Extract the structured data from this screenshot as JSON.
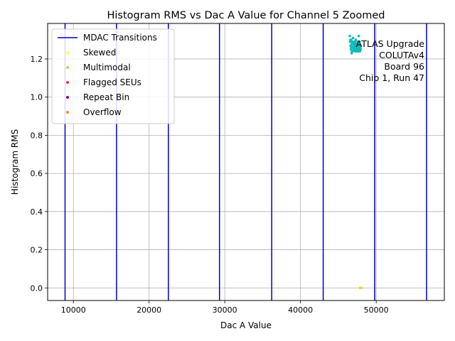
{
  "chart_data": {
    "type": "scatter",
    "title": "Histogram RMS vs Dac A Value for Channel 5 Zoomed",
    "xlabel": "Dac A Value",
    "ylabel": "Histogram RMS",
    "xlim": [
      6600,
      59000
    ],
    "ylim": [
      -0.066,
      1.386
    ],
    "x_ticks": [
      10000,
      20000,
      30000,
      40000,
      50000
    ],
    "y_ticks": [
      0.0,
      0.2,
      0.4,
      0.6,
      0.8,
      1.0,
      1.2
    ],
    "x_tick_labels": [
      "10000",
      "20000",
      "30000",
      "40000",
      "50000"
    ],
    "y_tick_labels": [
      "0.0",
      "0.2",
      "0.4",
      "0.6",
      "0.8",
      "1.0",
      "1.2"
    ],
    "grid": true,
    "legend_position": "upper-left",
    "legend": [
      {
        "label": "MDAC Transitions",
        "kind": "line",
        "color": "#0000cc"
      },
      {
        "label": "Skewed",
        "kind": "marker",
        "color": "#ffff33"
      },
      {
        "label": "Multimodal",
        "kind": "marker",
        "color": "#99ee44"
      },
      {
        "label": "Flagged SEUs",
        "kind": "marker",
        "color": "#dd3333"
      },
      {
        "label": "Repeat Bin",
        "kind": "marker",
        "color": "#880088"
      },
      {
        "label": "Overflow",
        "kind": "marker",
        "color": "#ff8833"
      }
    ],
    "mdac_transitions": [
      8900,
      15700,
      22550,
      29300,
      36200,
      43000,
      49800,
      56650
    ],
    "annotation": [
      "ATLAS Upgrade",
      "COLUTAv4",
      "Board 96",
      "Chip 1, Run 47"
    ],
    "series": [
      {
        "color": "#11bbbb",
        "points": [
          [
            46500,
            1.32
          ],
          [
            46550,
            1.29
          ],
          [
            46600,
            1.27
          ],
          [
            46650,
            1.25
          ],
          [
            46700,
            1.3
          ],
          [
            46750,
            1.23
          ],
          [
            46800,
            1.28
          ],
          [
            46850,
            1.26
          ],
          [
            46900,
            1.24
          ],
          [
            46950,
            1.31
          ],
          [
            47000,
            1.27
          ],
          [
            47050,
            1.25
          ],
          [
            47100,
            1.29
          ],
          [
            47150,
            1.26
          ],
          [
            47200,
            1.24
          ],
          [
            47250,
            1.28
          ],
          [
            47300,
            1.3
          ],
          [
            47350,
            1.25
          ],
          [
            47400,
            1.27
          ],
          [
            47450,
            1.26
          ],
          [
            47500,
            1.24
          ],
          [
            47550,
            1.29
          ],
          [
            47600,
            1.27
          ],
          [
            47650,
            1.25
          ],
          [
            47700,
            1.32
          ],
          [
            47750,
            1.28
          ],
          [
            47800,
            1.26
          ],
          [
            47850,
            1.24
          ],
          [
            47900,
            1.27
          ],
          [
            47950,
            1.25
          ],
          [
            46600,
            1.3
          ],
          [
            46700,
            1.26
          ],
          [
            46800,
            1.24
          ],
          [
            46900,
            1.28
          ],
          [
            47000,
            1.25
          ],
          [
            47100,
            1.27
          ],
          [
            47200,
            1.29
          ],
          [
            47300,
            1.26
          ],
          [
            47400,
            1.24
          ],
          [
            47500,
            1.28
          ],
          [
            47600,
            1.26
          ],
          [
            47700,
            1.24
          ],
          [
            47800,
            1.29
          ],
          [
            47900,
            1.26
          ],
          [
            46650,
            1.27
          ],
          [
            46850,
            1.29
          ],
          [
            47050,
            1.28
          ],
          [
            47250,
            1.25
          ],
          [
            47450,
            1.28
          ],
          [
            47650,
            1.27
          ]
        ]
      },
      {
        "color": "#dddd33",
        "points": [
          [
            47850,
            0.0
          ],
          [
            47950,
            0.0
          ],
          [
            48050,
            0.0
          ]
        ]
      }
    ]
  }
}
